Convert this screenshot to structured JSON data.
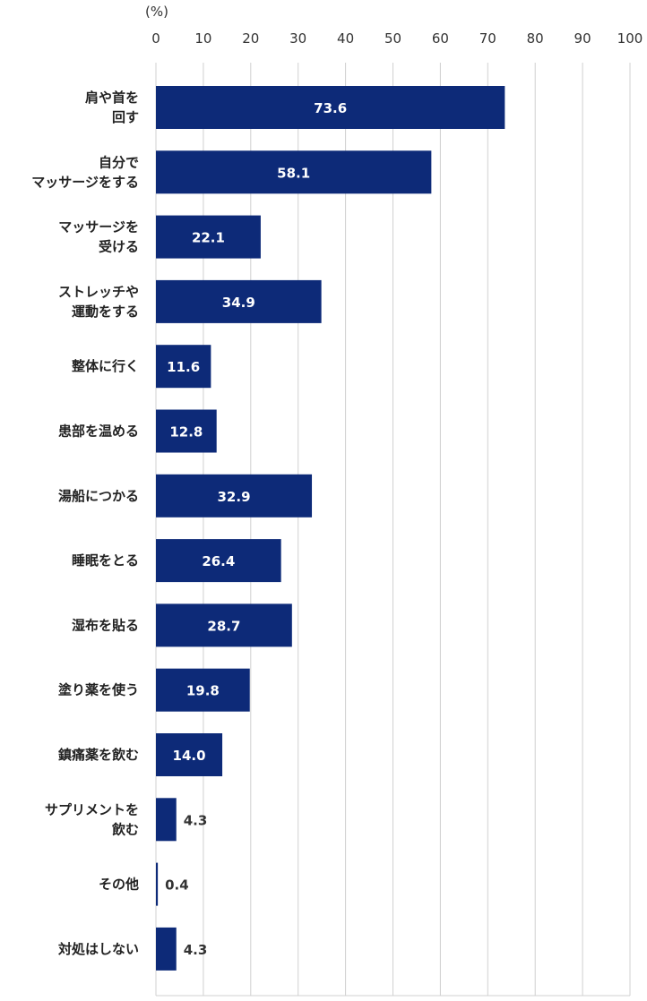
{
  "chart_data": {
    "type": "bar",
    "orientation": "horizontal",
    "unit_label": "(%)",
    "xlim": [
      0,
      100
    ],
    "ticks": [
      0,
      10,
      20,
      30,
      40,
      50,
      60,
      70,
      80,
      90,
      100
    ],
    "grid": true,
    "bar_color": "#0d2a78",
    "categories": [
      [
        "肩や首を",
        "回す"
      ],
      [
        "自分で",
        "マッサージをする"
      ],
      [
        "マッサージを",
        "受ける"
      ],
      [
        "ストレッチや",
        "運動をする"
      ],
      [
        "整体に行く"
      ],
      [
        "患部を温める"
      ],
      [
        "湯船につかる"
      ],
      [
        "睡眠をとる"
      ],
      [
        "湿布を貼る"
      ],
      [
        "塗り薬を使う"
      ],
      [
        "鎮痛薬を飲む"
      ],
      [
        "サプリメントを",
        "飲む"
      ],
      [
        "その他"
      ],
      [
        "対処はしない"
      ]
    ],
    "values": [
      73.6,
      58.1,
      22.1,
      34.9,
      11.6,
      12.8,
      32.9,
      26.4,
      28.7,
      19.8,
      14.0,
      4.3,
      0.4,
      4.3
    ],
    "value_labels": [
      "73.6",
      "58.1",
      "22.1",
      "34.9",
      "11.6",
      "12.8",
      "32.9",
      "26.4",
      "28.7",
      "19.8",
      "14.0",
      "4.3",
      "0.4",
      "4.3"
    ]
  }
}
